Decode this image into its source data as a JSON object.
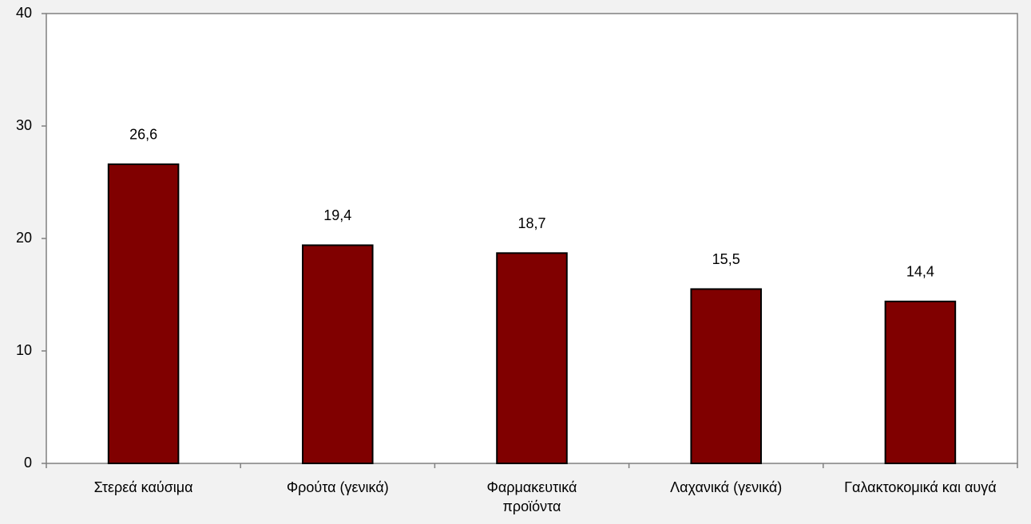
{
  "chart_data": {
    "type": "bar",
    "categories": [
      "Στερεά καύσιμα",
      "Φρούτα (γενικά)",
      "Φαρμακευτικά προϊόντα",
      "Λαχανικά (γενικά)",
      "Γαλακτοκομικά και αυγά"
    ],
    "values": [
      26.6,
      19.4,
      18.7,
      15.5,
      14.4
    ],
    "value_labels": [
      "26,6",
      "19,4",
      "18,7",
      "15,5",
      "14,4"
    ],
    "color": "#800000",
    "ylim": [
      0,
      40
    ],
    "yticks": [
      0,
      10,
      20,
      30,
      40
    ],
    "grid": false
  }
}
